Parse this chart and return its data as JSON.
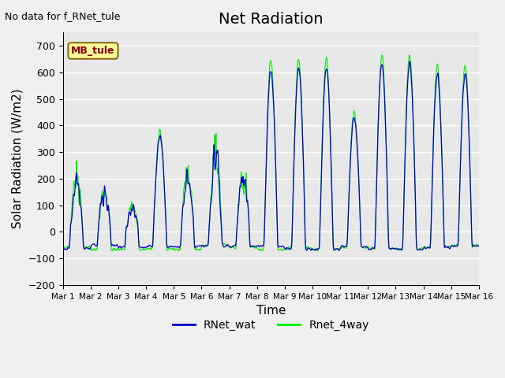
{
  "title": "Net Radiation",
  "xlabel": "Time",
  "ylabel": "Solar Radiation (W/m2)",
  "top_left_text": "No data for f_RNet_tule",
  "box_label": "MB_tule",
  "ylim": [
    -200,
    750
  ],
  "yticks": [
    -200,
    -100,
    0,
    100,
    200,
    300,
    400,
    500,
    600,
    700
  ],
  "xtick_labels": [
    "Mar 1",
    "Mar 2",
    "Mar 3",
    "Mar 4",
    "Mar 5",
    "Mar 6",
    "Mar 7",
    "Mar 8",
    "Mar 9",
    "Mar 10",
    "Mar 11",
    "Mar 12",
    "Mar 13",
    "Mar 14",
    "Mar 15",
    "Mar 16"
  ],
  "legend_labels": [
    "RNet_wat",
    "Rnet_4way"
  ],
  "blue_color": "#0000cd",
  "green_color": "#00ee00",
  "background_color": "#e8e8e8",
  "plot_bg_color": "#e8e8e8",
  "grid_color": "white",
  "title_fontsize": 14,
  "label_fontsize": 11,
  "n_days": 15,
  "points_per_day": 96
}
